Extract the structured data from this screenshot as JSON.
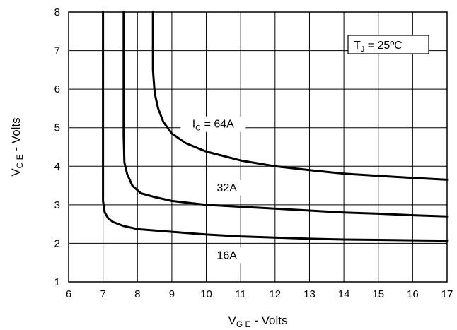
{
  "chart_data": {
    "type": "line",
    "title": "",
    "xlabel": {
      "main": "V",
      "sub": "G E",
      "rest": " - Volts"
    },
    "ylabel": {
      "main": "V",
      "sub": "C E",
      "rest": " - Volts"
    },
    "xlim": [
      6,
      17
    ],
    "ylim": [
      1,
      8
    ],
    "xticks": [
      "6",
      "7",
      "8",
      "9",
      "10",
      "11",
      "12",
      "13",
      "14",
      "15",
      "16",
      "17"
    ],
    "yticks": [
      "1",
      "2",
      "3",
      "4",
      "5",
      "6",
      "7",
      "8"
    ],
    "grid": true,
    "annotation": {
      "main": "T",
      "sub": "J",
      "rest": " = 25ºC"
    },
    "series": [
      {
        "name": "64A",
        "label": {
          "main": "I",
          "sub": "C",
          "rest": " = 64A"
        },
        "points": [
          [
            8.45,
            8
          ],
          [
            8.45,
            6.5
          ],
          [
            8.5,
            5.9
          ],
          [
            8.6,
            5.5
          ],
          [
            8.75,
            5.15
          ],
          [
            9,
            4.85
          ],
          [
            9.4,
            4.6
          ],
          [
            10,
            4.38
          ],
          [
            11,
            4.15
          ],
          [
            12,
            4.0
          ],
          [
            13,
            3.9
          ],
          [
            14,
            3.81
          ],
          [
            15,
            3.75
          ],
          [
            16,
            3.7
          ],
          [
            17,
            3.65
          ]
        ]
      },
      {
        "name": "32A",
        "label": {
          "main": "32A",
          "sub": "",
          "rest": ""
        },
        "points": [
          [
            7.6,
            8
          ],
          [
            7.6,
            4.8
          ],
          [
            7.62,
            4.1
          ],
          [
            7.7,
            3.8
          ],
          [
            7.85,
            3.5
          ],
          [
            8.1,
            3.3
          ],
          [
            8.5,
            3.2
          ],
          [
            9,
            3.1
          ],
          [
            10,
            3.0
          ],
          [
            11,
            2.95
          ],
          [
            12,
            2.9
          ],
          [
            13,
            2.85
          ],
          [
            14,
            2.8
          ],
          [
            15,
            2.77
          ],
          [
            16,
            2.73
          ],
          [
            17,
            2.7
          ]
        ]
      },
      {
        "name": "16A",
        "label": {
          "main": "16A",
          "sub": "",
          "rest": ""
        },
        "points": [
          [
            7.0,
            8
          ],
          [
            7.0,
            3.1
          ],
          [
            7.05,
            2.8
          ],
          [
            7.15,
            2.65
          ],
          [
            7.3,
            2.55
          ],
          [
            7.6,
            2.45
          ],
          [
            8,
            2.37
          ],
          [
            9,
            2.3
          ],
          [
            10,
            2.23
          ],
          [
            11,
            2.18
          ],
          [
            12,
            2.15
          ],
          [
            13,
            2.12
          ],
          [
            14,
            2.1
          ],
          [
            15,
            2.09
          ],
          [
            16,
            2.08
          ],
          [
            17,
            2.07
          ]
        ]
      }
    ]
  }
}
